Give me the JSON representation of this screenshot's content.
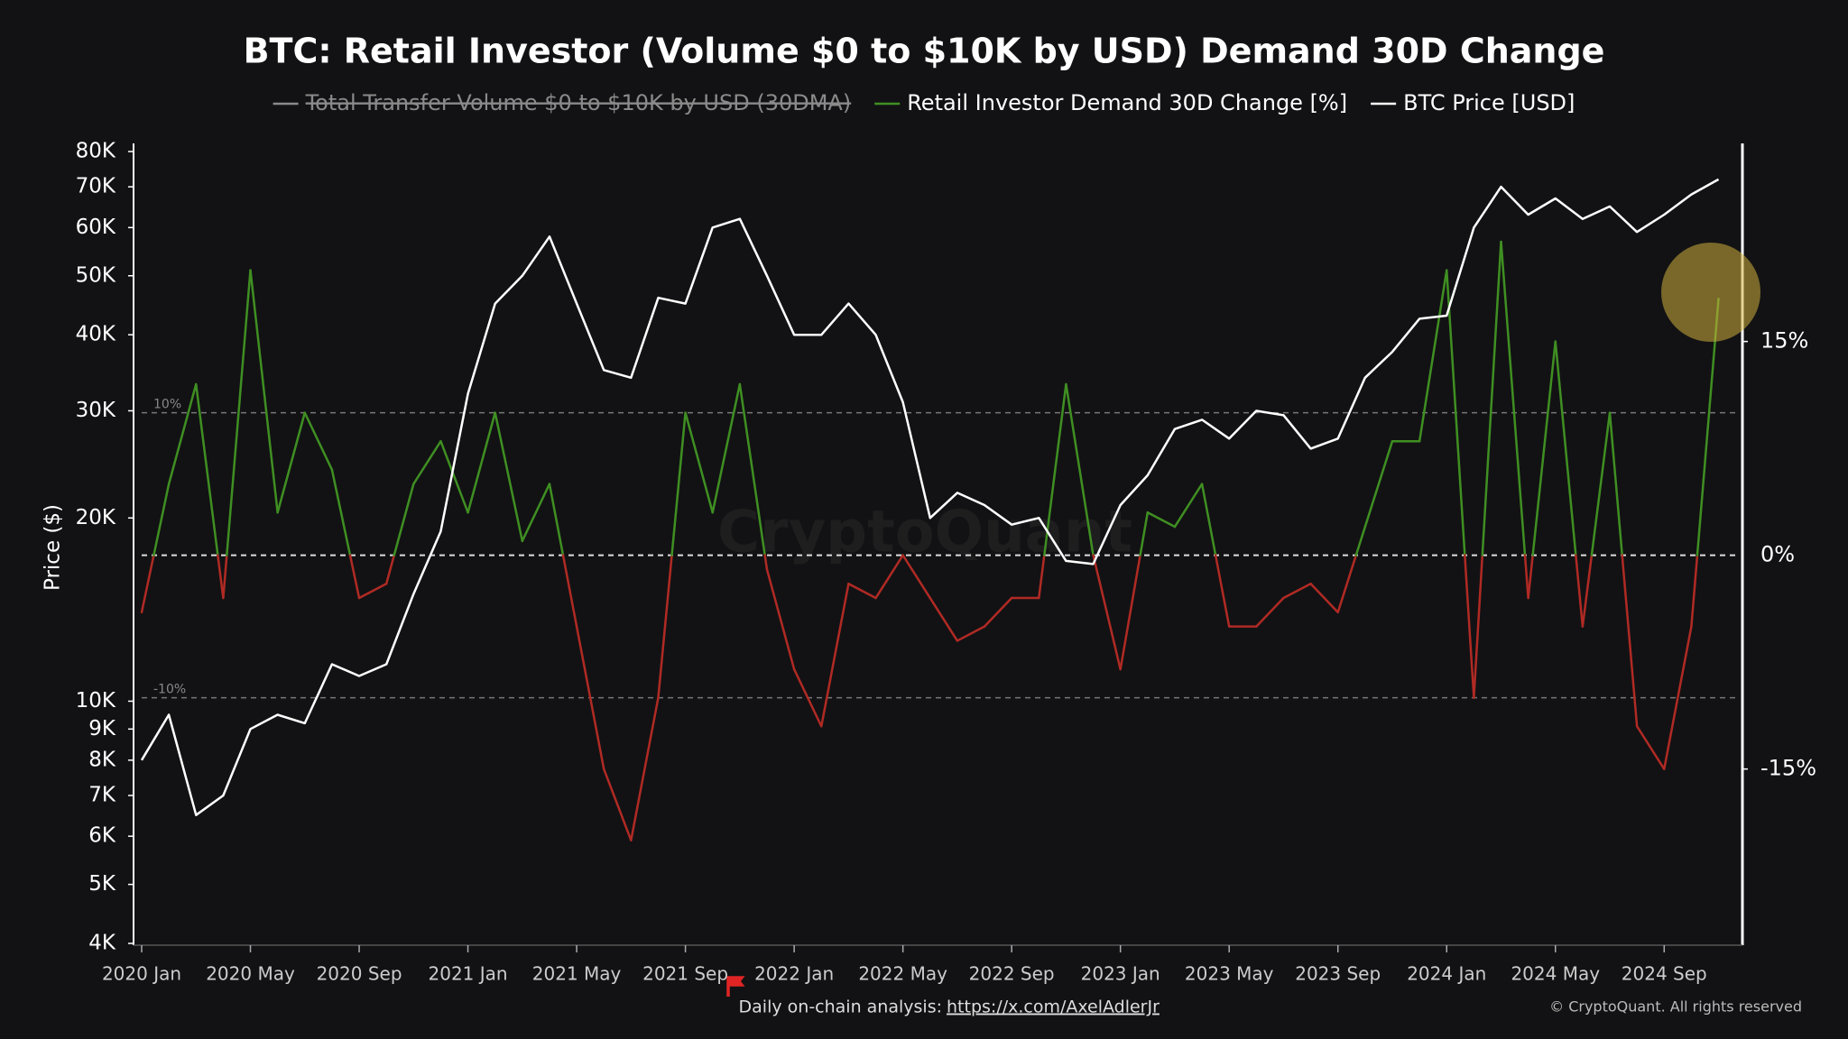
{
  "chart_data": {
    "type": "line",
    "title": "BTC: Retail Investor (Volume $0 to $10K by USD) Demand 30D Change",
    "legend_hidden": [
      {
        "name": "Total Transfer Volume $0 to $10K by USD (30DMA)",
        "color": "#8a8a8a"
      }
    ],
    "ylabel": "Price ($)",
    "log_scale_y": true,
    "x": [
      "2020 Jan",
      null,
      null,
      null,
      "2020 May",
      null,
      null,
      null,
      "2020 Sep",
      null,
      null,
      null,
      "2021 Jan",
      null,
      null,
      null,
      "2021 May",
      null,
      null,
      null,
      "2021 Sep",
      null,
      null,
      null,
      "2022 Jan",
      null,
      null,
      null,
      "2022 May",
      null,
      null,
      null,
      "2022 Sep",
      null,
      null,
      null,
      "2023 Jan",
      null,
      null,
      null,
      "2023 May",
      null,
      null,
      null,
      "2023 Sep",
      null,
      null,
      null,
      "2024 Jan",
      null,
      null,
      null,
      "2024 May",
      null,
      null,
      null,
      "2024 Sep",
      null,
      null
    ],
    "series": [
      {
        "name": "Retail Investor Demand 30D Change [%]",
        "color": "#3f8f22",
        "negative_color": "#b02a24",
        "axis": "y2",
        "values": [
          -4,
          5,
          12,
          -3,
          20,
          3,
          10,
          6,
          -3,
          -2,
          5,
          8,
          3,
          10,
          1,
          5,
          -5,
          -15,
          -20,
          -10,
          10,
          3,
          12,
          -1,
          -8,
          -12,
          -2,
          -3,
          0,
          -3,
          -6,
          -5,
          -3,
          -3,
          12,
          0,
          -8,
          3,
          2,
          5,
          -5,
          -5,
          -3,
          -2,
          -4,
          2,
          8,
          8,
          20,
          -10,
          22,
          -3,
          15,
          -5,
          10,
          -12,
          -15,
          -5,
          18
        ]
      },
      {
        "name": "BTC Price [USD]",
        "color": "#ffffff",
        "axis": "y",
        "values": [
          8000,
          9500,
          6500,
          7000,
          9000,
          9500,
          9200,
          11500,
          11000,
          11500,
          15000,
          19000,
          32000,
          45000,
          50000,
          58000,
          45000,
          35000,
          34000,
          46000,
          45000,
          60000,
          62000,
          50000,
          40000,
          40000,
          45000,
          40000,
          31000,
          20000,
          22000,
          21000,
          19500,
          20000,
          17000,
          16800,
          21000,
          23500,
          28000,
          29000,
          27000,
          30000,
          29500,
          26000,
          27000,
          34000,
          37500,
          42500,
          43000,
          60000,
          70000,
          63000,
          67000,
          62000,
          65000,
          59000,
          63000,
          68000,
          72000
        ]
      }
    ],
    "ylim": [
      4000,
      80000
    ],
    "yticks": [
      {
        "value": 4000,
        "label": "4K"
      },
      {
        "value": 5000,
        "label": "5K"
      },
      {
        "value": 6000,
        "label": "6K"
      },
      {
        "value": 7000,
        "label": "7K"
      },
      {
        "value": 8000,
        "label": "8K"
      },
      {
        "value": 9000,
        "label": "9K"
      },
      {
        "value": 10000,
        "label": "10K"
      },
      {
        "value": 20000,
        "label": "20K"
      },
      {
        "value": 30000,
        "label": "30K"
      },
      {
        "value": 40000,
        "label": "40K"
      },
      {
        "value": 50000,
        "label": "50K"
      },
      {
        "value": 60000,
        "label": "60K"
      },
      {
        "value": 70000,
        "label": "70K"
      },
      {
        "value": 80000,
        "label": "80K"
      }
    ],
    "y2lim": [
      -27.3,
      28.9
    ],
    "y2ticks": [
      {
        "value": -15,
        "label": "-15%"
      },
      {
        "value": 0,
        "label": "0%"
      },
      {
        "value": 15,
        "label": "15%"
      }
    ],
    "reference_lines": [
      {
        "value": 10,
        "label": "10%"
      },
      {
        "value": -10,
        "label": "-10%"
      }
    ],
    "watermark": "CryptoQuant",
    "footer": {
      "text": "Daily on-chain analysis:",
      "link": "https://x.com/AxelAdlerJr",
      "copyright": "© CryptoQuant. All rights reserved"
    }
  }
}
